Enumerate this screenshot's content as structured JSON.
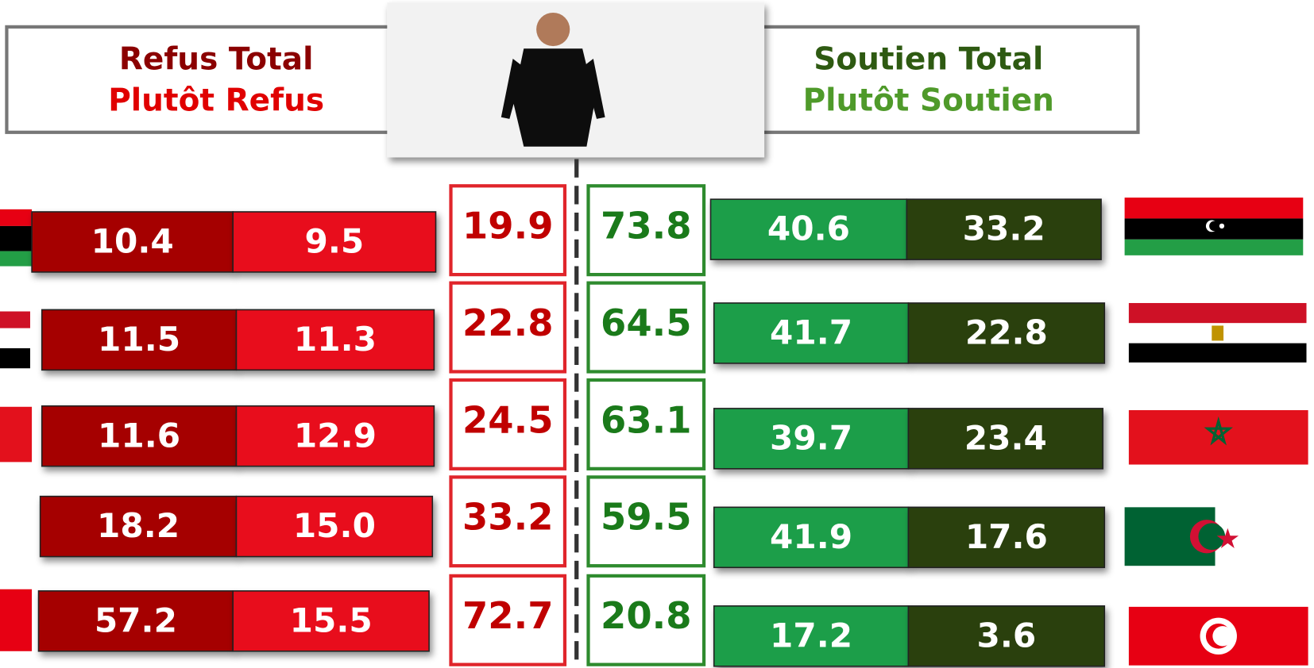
{
  "legend": {
    "refus_total": "Refus Total",
    "plutot_refus": "Plutôt Refus",
    "soutien_total": "Soutien Total",
    "plutot_soutien": "Plutôt Soutien"
  },
  "rows": [
    {
      "refus_total": "10.4",
      "plutot_refus": "9.5",
      "refus": "19.9",
      "soutien": "73.8",
      "plutot_soutien": "40.6",
      "soutien_total": "33.2"
    },
    {
      "refus_total": "11.5",
      "plutot_refus": "11.3",
      "refus": "22.8",
      "soutien": "64.5",
      "plutot_soutien": "41.7",
      "soutien_total": "22.8"
    },
    {
      "refus_total": "11.6",
      "plutot_refus": "12.9",
      "refus": "24.5",
      "soutien": "63.1",
      "plutot_soutien": "39.7",
      "soutien_total": "23.4"
    },
    {
      "refus_total": "18.2",
      "plutot_refus": "15.0",
      "refus": "33.2",
      "soutien": "59.5",
      "plutot_soutien": "41.9",
      "soutien_total": "17.6"
    },
    {
      "refus_total": "57.2",
      "plutot_refus": "15.5",
      "refus": "72.7",
      "soutien": "20.8",
      "plutot_soutien": "17.2",
      "soutien_total": "3.6"
    }
  ]
}
